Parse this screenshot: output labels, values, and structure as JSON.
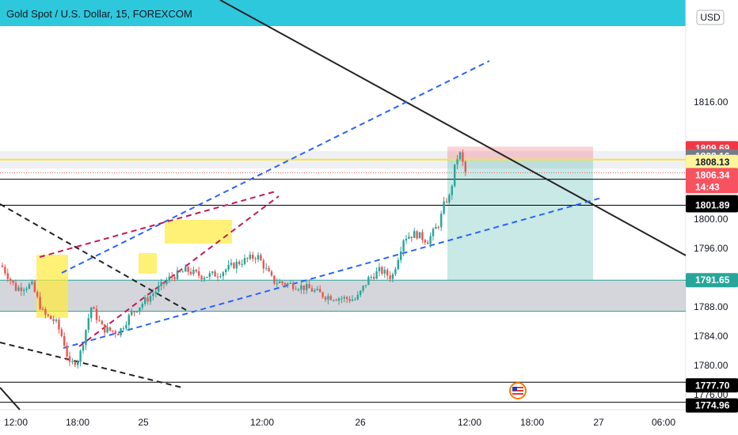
{
  "header": {
    "title": "Gold Spot / U.S. Dollar, 15, FOREXCOM",
    "accent": "#2ec8dc"
  },
  "currency_label": "USD",
  "chart_data": {
    "type": "candlestick",
    "symbol": "Gold Spot / U.S. Dollar",
    "timeframe": "15",
    "source": "FOREXCOM",
    "currency": "USD",
    "ylim": [
      1774.0,
      1817.0
    ],
    "y_ticks": [
      {
        "value": 1816.0,
        "label": "1816.00"
      },
      {
        "value": 1800.0,
        "label": "1800.00"
      },
      {
        "value": 1796.0,
        "label": "1796.00"
      },
      {
        "value": 1788.0,
        "label": "1788.00"
      },
      {
        "value": 1784.0,
        "label": "1784.00"
      },
      {
        "value": 1780.0,
        "label": "1780.00"
      },
      {
        "value": 1776.0,
        "label": "1776.00"
      }
    ],
    "x_ticks": [
      {
        "time": "24 12:00",
        "label": "12:00"
      },
      {
        "time": "24 18:00",
        "label": "18:00"
      },
      {
        "time": "25 00:00",
        "label": "25"
      },
      {
        "time": "25 12:00",
        "label": "12:00"
      },
      {
        "time": "26 00:00",
        "label": "26"
      },
      {
        "time": "26 12:00",
        "label": "12:00"
      },
      {
        "time": "26 18:00",
        "label": "18:00"
      },
      {
        "time": "27 00:00",
        "label": "27"
      },
      {
        "time": "27 06:00",
        "label": "06:00"
      }
    ],
    "price_tags": [
      {
        "value": 1809.69,
        "label": "1809.69",
        "bg": "#f23645",
        "fg": "#ffffff"
      },
      {
        "value": 1808.16,
        "label": "1808.16",
        "bg": "#787b86",
        "fg": "#ffffff"
      },
      {
        "value": 1808.13,
        "label": "1808.13",
        "bg": "#fff59d",
        "fg": "#131722"
      },
      {
        "value": 1806.34,
        "label": "1806.34",
        "sub": "14:43",
        "bg": "#f7525f",
        "fg": "#ffffff"
      },
      {
        "value": 1805.45,
        "label": "1805.45",
        "bg": "#000000",
        "fg": "#ffffff"
      },
      {
        "value": 1801.89,
        "label": "1801.89",
        "bg": "#000000",
        "fg": "#ffffff"
      },
      {
        "value": 1791.65,
        "label": "1791.65",
        "bg": "#26a69a",
        "fg": "#ffffff"
      },
      {
        "value": 1777.7,
        "label": "1777.70",
        "bg": "#000000",
        "fg": "#ffffff"
      },
      {
        "value": 1774.96,
        "label": "1774.96",
        "bg": "#000000",
        "fg": "#ffffff"
      }
    ],
    "horizontal_lines": [
      {
        "value": 1805.45,
        "color": "#000000"
      },
      {
        "value": 1801.89,
        "color": "#000000"
      },
      {
        "value": 1808.13,
        "color": "#f5e43a"
      },
      {
        "value": 1777.7,
        "color": "#000000"
      },
      {
        "value": 1774.96,
        "color": "#000000"
      }
    ],
    "zones": [
      {
        "name": "demand-zone",
        "from": 1791.65,
        "to": 1787.4,
        "color": "#b2b5be",
        "opacity": 0.55,
        "border": "#26a69a"
      },
      {
        "name": "supply-band",
        "from": 1809.3,
        "to": 1806.9,
        "color": "#d1d4dc",
        "opacity": 0.35
      }
    ],
    "colors": {
      "up": "#26a69a",
      "down": "#ef5350",
      "tp_zone": "#26a69a",
      "sl_zone": "#f23645"
    }
  }
}
